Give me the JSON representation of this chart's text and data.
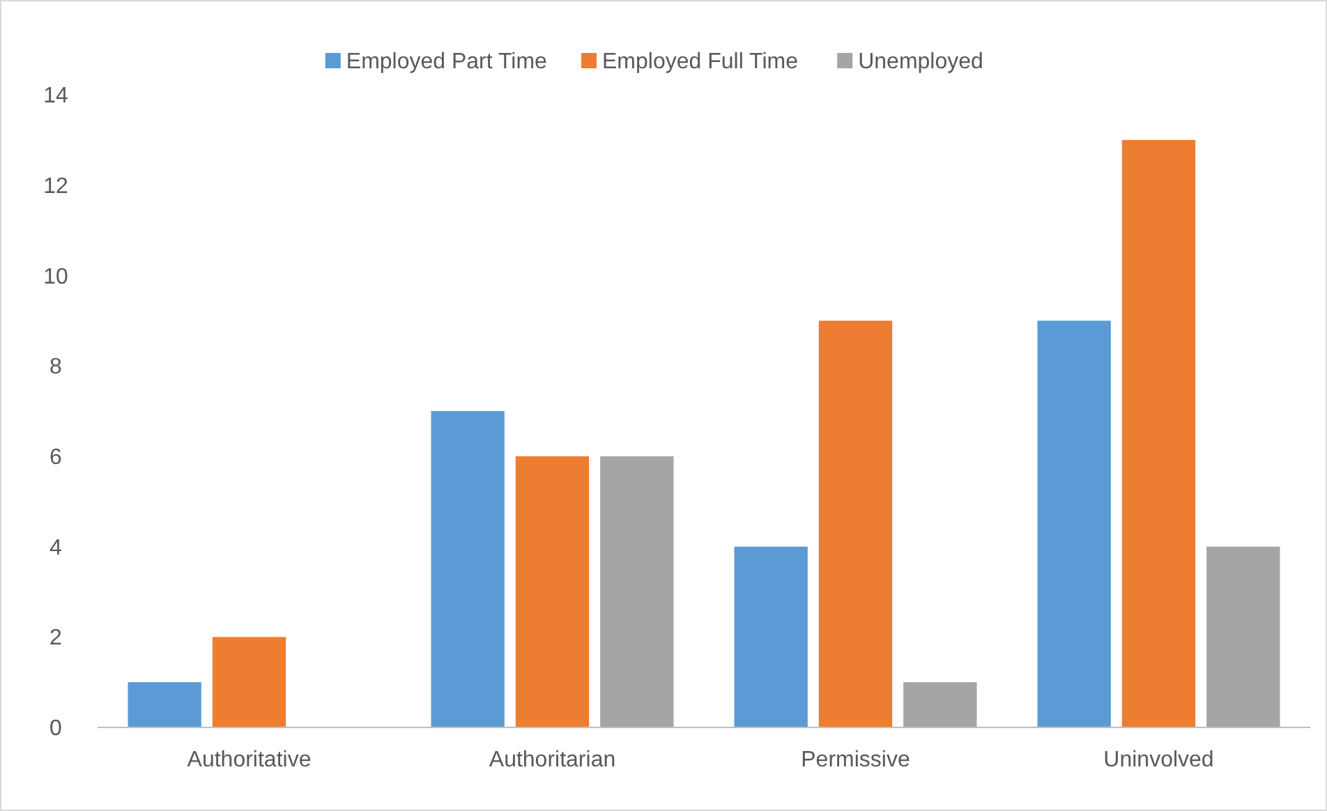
{
  "chart_data": {
    "type": "bar",
    "categories": [
      "Authoritative",
      "Authoritarian",
      "Permissive",
      "Uninvolved"
    ],
    "series": [
      {
        "name": "Employed Part Time",
        "color": "#5b9bd5",
        "values": [
          1,
          7,
          4,
          9
        ]
      },
      {
        "name": "Employed Full Time",
        "color": "#ed7d31",
        "values": [
          2,
          6,
          9,
          13
        ]
      },
      {
        "name": "Unemployed",
        "color": "#a5a5a5",
        "values": [
          0,
          6,
          1,
          4
        ]
      }
    ],
    "ylim": [
      0,
      14
    ],
    "yticks": [
      0,
      2,
      4,
      6,
      8,
      10,
      12,
      14
    ],
    "grid": false,
    "legend": "top"
  }
}
